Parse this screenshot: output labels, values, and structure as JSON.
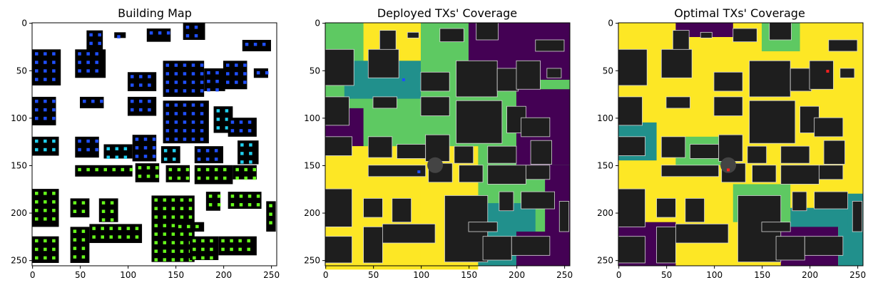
{
  "chart_data": [
    {
      "type": "heatmap",
      "title": "Building Map",
      "xlim": [
        0,
        255
      ],
      "ylim": [
        255,
        0
      ],
      "xticks": [
        0,
        50,
        100,
        150,
        200,
        250
      ],
      "yticks": [
        0,
        50,
        100,
        150,
        200,
        250
      ],
      "colormap": "building"
    },
    {
      "type": "heatmap",
      "title": "Deployed TXs' Coverage",
      "xlim": [
        0,
        255
      ],
      "ylim": [
        255,
        0
      ],
      "xticks": [
        0,
        50,
        100,
        150,
        200,
        250
      ],
      "yticks": [
        0,
        50,
        100,
        150,
        200,
        250
      ],
      "colormap": "viridis",
      "transmitters": [
        {
          "x": 82,
          "y": 60
        },
        {
          "x": 98,
          "y": 157
        }
      ]
    },
    {
      "type": "heatmap",
      "title": "Optimal TXs' Coverage",
      "xlim": [
        0,
        255
      ],
      "ylim": [
        255,
        0
      ],
      "xticks": [
        0,
        50,
        100,
        150,
        200,
        250
      ],
      "yticks": [
        0,
        50,
        100,
        150,
        200,
        250
      ],
      "colormap": "viridis",
      "transmitters": [
        {
          "x": 219,
          "y": 51
        },
        {
          "x": 115,
          "y": 155
        }
      ]
    }
  ],
  "colors": {
    "building_dark": "#000000",
    "tx_blue": "#1f4fff",
    "tx_cyan": "#20d0f0",
    "tx_green": "#66ff1a",
    "cov_low": "#440154",
    "cov_mid1": "#21908c",
    "cov_mid2": "#5ec962",
    "cov_high": "#fde725",
    "building_gray": "#1e1e1e",
    "tx_marker": "#ff2020"
  }
}
